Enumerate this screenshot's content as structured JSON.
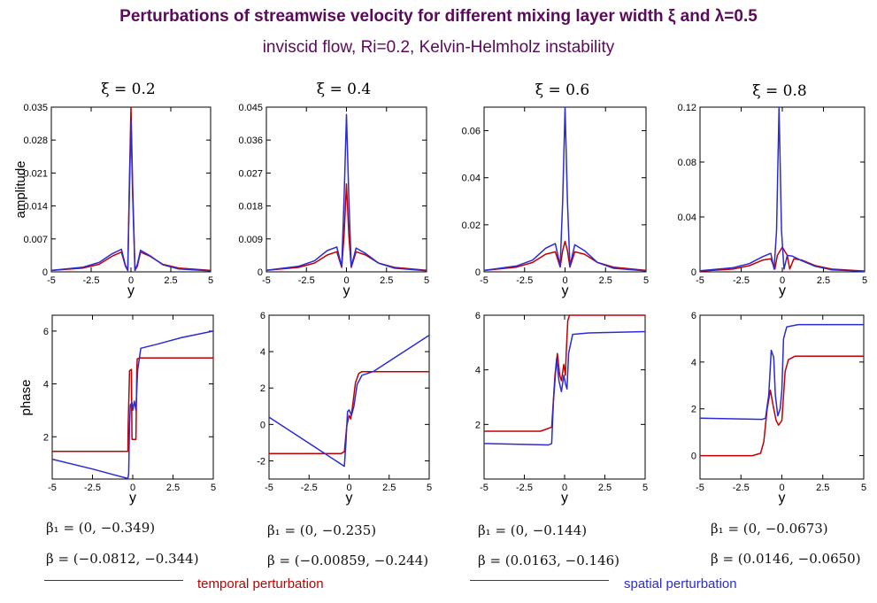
{
  "title": "Perturbations of streamwise velocity for different mixing layer width ξ and λ=0.5",
  "subtitle": "inviscid flow, Ri=0.2,   Kelvin-Helmholz instability",
  "colors": {
    "temporal": "#c00000",
    "spatial": "#2b2bd6",
    "title": "#5a0a5a"
  },
  "legend": {
    "temporal": "temporal perturbation",
    "spatial": "spatial perturbation"
  },
  "ylabel_amplitude": "amplitude",
  "ylabel_phase": "phase",
  "xlabel": "y",
  "annotations": [
    {
      "beta1": "β₁ = (0, −0.349)",
      "beta": "β = (−0.0812, −0.344)"
    },
    {
      "beta1": "β₁ = (0, −0.235)",
      "beta": "β = (−0.00859, −0.244)"
    },
    {
      "beta1": "β₁ = (0, −0.144)",
      "beta": "β = (0.0163, −0.146)"
    },
    {
      "beta1": "β₁ = (0, −0.0673)",
      "beta": "β = (0.0146, −0.0650)"
    }
  ],
  "chart_data": [
    {
      "type": "line",
      "panel_title": "ξ = 0.2",
      "ylim": [
        0,
        0.035
      ],
      "yticks": [
        0,
        0.007,
        0.014,
        0.021,
        0.028,
        0.035
      ],
      "ytick_labels": [
        "0",
        "0.007",
        "0.014",
        "0.021",
        "0.028",
        "0.035"
      ],
      "xlim": [
        -5,
        5
      ],
      "xticks": [
        -5,
        -2.5,
        0,
        2.5,
        5
      ],
      "xtick_labels": [
        "-5",
        "-2.5",
        "0",
        "2.5",
        "5"
      ],
      "series": [
        {
          "name": "temporal perturbation",
          "kind": "temporal",
          "x": [
            -5,
            -3,
            -2,
            -1.2,
            -0.6,
            -0.35,
            -0.2,
            -0.1,
            0,
            0.1,
            0.25,
            0.4,
            0.6,
            1.2,
            2,
            3,
            5
          ],
          "y": [
            0.0003,
            0.0008,
            0.0016,
            0.0033,
            0.0042,
            0.0012,
            0.0003,
            0.019,
            0.035,
            0.019,
            0.0003,
            0.0012,
            0.0042,
            0.0033,
            0.0016,
            0.0008,
            0.0003
          ]
        },
        {
          "name": "spatial perturbation",
          "kind": "spatial",
          "x": [
            -5,
            -3,
            -2,
            -1.2,
            -0.6,
            -0.35,
            -0.2,
            -0.1,
            0,
            0.1,
            0.25,
            0.4,
            0.6,
            1.2,
            2,
            3,
            5
          ],
          "y": [
            0.0003,
            0.001,
            0.002,
            0.0038,
            0.0048,
            0.0014,
            0.0003,
            0.017,
            0.032,
            0.017,
            0.0003,
            0.0016,
            0.0046,
            0.0034,
            0.0015,
            0.0006,
            0.0002
          ]
        }
      ]
    },
    {
      "type": "line",
      "panel_title": "ξ = 0.4",
      "ylim": [
        0,
        0.045
      ],
      "yticks": [
        0,
        0.009,
        0.018,
        0.027,
        0.036,
        0.045
      ],
      "ytick_labels": [
        "0",
        "0.009",
        "0.018",
        "0.027",
        "0.036",
        "0.045"
      ],
      "xlim": [
        -5,
        5
      ],
      "xticks": [
        -5,
        -2.5,
        0,
        2.5,
        5
      ],
      "xtick_labels": [
        "-5",
        "-2.5",
        "0",
        "2.5",
        "5"
      ],
      "series": [
        {
          "name": "temporal perturbation",
          "kind": "temporal",
          "x": [
            -5,
            -3,
            -2,
            -1.2,
            -0.6,
            -0.3,
            -0.15,
            0,
            0.15,
            0.3,
            0.6,
            1.2,
            2,
            3,
            5
          ],
          "y": [
            0.0004,
            0.0012,
            0.0024,
            0.0046,
            0.0055,
            0.0012,
            0.01,
            0.024,
            0.01,
            0.0012,
            0.0055,
            0.0046,
            0.0024,
            0.0012,
            0.0004
          ]
        },
        {
          "name": "spatial perturbation",
          "kind": "spatial",
          "x": [
            -5,
            -3,
            -2,
            -1.2,
            -0.6,
            -0.3,
            -0.15,
            0,
            0.15,
            0.3,
            0.6,
            1.2,
            2,
            3,
            5
          ],
          "y": [
            0.0004,
            0.0015,
            0.003,
            0.0058,
            0.0068,
            0.0014,
            0.02,
            0.043,
            0.02,
            0.0014,
            0.0065,
            0.005,
            0.0024,
            0.001,
            0.0003
          ]
        }
      ]
    },
    {
      "type": "line",
      "panel_title": "ξ = 0.6",
      "ylim": [
        0,
        0.07
      ],
      "yticks": [
        0,
        0.02,
        0.04,
        0.06
      ],
      "ytick_labels": [
        "0",
        "0.02",
        "0.04",
        "0.06"
      ],
      "xlim": [
        -5,
        5
      ],
      "xticks": [
        -5,
        -2.5,
        0,
        2.5,
        5
      ],
      "xtick_labels": [
        "-5",
        "-2.5",
        "0",
        "2.5",
        "5"
      ],
      "series": [
        {
          "name": "temporal perturbation",
          "kind": "temporal",
          "x": [
            -5,
            -3,
            -2,
            -1.2,
            -0.6,
            -0.3,
            -0.15,
            0,
            0.15,
            0.3,
            0.6,
            1.2,
            2,
            3,
            5
          ],
          "y": [
            0.0006,
            0.002,
            0.004,
            0.0075,
            0.0085,
            0.002,
            0.009,
            0.013,
            0.009,
            0.002,
            0.0085,
            0.0075,
            0.004,
            0.002,
            0.0006
          ]
        },
        {
          "name": "spatial perturbation",
          "kind": "spatial",
          "x": [
            -5,
            -3,
            -2,
            -1.2,
            -0.6,
            -0.3,
            -0.15,
            0,
            0.15,
            0.3,
            0.6,
            1.2,
            2,
            3,
            5
          ],
          "y": [
            0.0006,
            0.0025,
            0.005,
            0.01,
            0.012,
            0.0025,
            0.03,
            0.071,
            0.03,
            0.0025,
            0.0115,
            0.009,
            0.004,
            0.0015,
            0.0004
          ]
        }
      ]
    },
    {
      "type": "line",
      "panel_title": "ξ = 0.8",
      "ylim": [
        0,
        0.12
      ],
      "yticks": [
        0,
        0.04,
        0.08,
        0.12
      ],
      "ytick_labels": [
        "0",
        "0.04",
        "0.08",
        "0.12"
      ],
      "xlim": [
        -5,
        5
      ],
      "xticks": [
        -5,
        -2.5,
        0,
        2.5,
        5
      ],
      "xtick_labels": [
        "-5",
        "-2.5",
        "0",
        "2.5",
        "5"
      ],
      "series": [
        {
          "name": "temporal perturbation",
          "kind": "temporal",
          "x": [
            -5,
            -3,
            -2,
            -1.2,
            -0.7,
            -0.45,
            -0.3,
            0,
            0.3,
            0.45,
            0.7,
            1.2,
            2,
            3,
            5
          ],
          "y": [
            0.0006,
            0.002,
            0.0045,
            0.0085,
            0.0095,
            0.002,
            0.012,
            0.018,
            0.012,
            0.002,
            0.0095,
            0.0085,
            0.0045,
            0.002,
            0.0006
          ]
        },
        {
          "name": "spatial perturbation",
          "kind": "spatial",
          "x": [
            -5,
            -3,
            -2,
            -1.2,
            -0.7,
            -0.5,
            -0.35,
            -0.2,
            -0.05,
            0.1,
            0.3,
            0.6,
            1.2,
            2,
            3,
            5
          ],
          "y": [
            0.0008,
            0.003,
            0.006,
            0.011,
            0.0135,
            0.002,
            0.03,
            0.12,
            0.03,
            0.002,
            0.012,
            0.0115,
            0.008,
            0.004,
            0.0015,
            0.0005
          ]
        }
      ]
    },
    {
      "type": "line",
      "ylim": [
        0.4,
        6.6
      ],
      "yticks": [
        2,
        4,
        6
      ],
      "ytick_labels": [
        "2",
        "4",
        "6"
      ],
      "xlim": [
        -5,
        5
      ],
      "xticks": [
        -5,
        -2.5,
        0,
        2.5,
        5
      ],
      "xtick_labels": [
        "-5",
        "-2.5",
        "0",
        "2.5",
        "5"
      ],
      "series": [
        {
          "name": "temporal perturbation",
          "kind": "temporal",
          "x": [
            -5,
            -0.3,
            -0.28,
            -0.2,
            -0.08,
            -0.05,
            -0.04,
            0.05,
            0.06,
            0.2,
            0.25,
            0.28,
            0.45,
            5
          ],
          "y": [
            1.45,
            1.45,
            2.5,
            4.5,
            4.55,
            2.0,
            1.9,
            1.9,
            1.9,
            1.9,
            4.6,
            4.95,
            4.98,
            4.98
          ]
        },
        {
          "name": "spatial perturbation",
          "kind": "spatial",
          "x": [
            -5,
            -2.5,
            -0.3,
            -0.25,
            -0.2,
            -0.15,
            -0.05,
            0,
            0.1,
            0.2,
            0.3,
            0.5,
            1.5,
            3,
            5
          ],
          "y": [
            1.15,
            0.78,
            0.42,
            0.6,
            2.5,
            3.2,
            3.3,
            3.0,
            3.35,
            3.0,
            4.5,
            5.35,
            5.5,
            5.75,
            6.0
          ]
        }
      ]
    },
    {
      "type": "line",
      "ylim": [
        -3,
        6
      ],
      "yticks": [
        -2,
        0,
        2,
        4,
        6
      ],
      "ytick_labels": [
        "-2",
        "0",
        "2",
        "4",
        "6"
      ],
      "xlim": [
        -5,
        5
      ],
      "xticks": [
        -5,
        -2.5,
        0,
        2.5,
        5
      ],
      "xtick_labels": [
        "-5",
        "-2.5",
        "0",
        "2.5",
        "5"
      ],
      "series": [
        {
          "name": "temporal perturbation",
          "kind": "temporal",
          "x": [
            -5,
            -0.5,
            -0.3,
            -0.15,
            0,
            0.1,
            0.2,
            0.4,
            0.6,
            0.8,
            5
          ],
          "y": [
            -1.6,
            -1.6,
            -1.5,
            -0.1,
            0.5,
            0.3,
            0.9,
            2.3,
            2.8,
            2.9,
            2.9
          ]
        },
        {
          "name": "spatial perturbation",
          "kind": "spatial",
          "x": [
            -5,
            -0.3,
            -0.2,
            -0.1,
            0,
            0.15,
            0.3,
            0.5,
            0.8,
            1.5,
            5
          ],
          "y": [
            0.4,
            -2.3,
            -1.0,
            0.7,
            0.8,
            0.5,
            1.0,
            2.2,
            2.7,
            2.9,
            4.9
          ]
        }
      ]
    },
    {
      "type": "line",
      "ylim": [
        0,
        6
      ],
      "yticks": [
        2,
        4,
        6
      ],
      "ytick_labels": [
        "2",
        "4",
        "6"
      ],
      "xlim": [
        -5,
        5
      ],
      "xticks": [
        -5,
        -2.5,
        0,
        2.5,
        5
      ],
      "xtick_labels": [
        "-5",
        "-2.5",
        "0",
        "2.5",
        "5"
      ],
      "series": [
        {
          "name": "temporal perturbation",
          "kind": "temporal",
          "x": [
            -5,
            -1.5,
            -0.8,
            -0.6,
            -0.45,
            -0.3,
            -0.2,
            -0.05,
            0.05,
            0.1,
            0.2,
            0.3,
            5
          ],
          "y": [
            1.75,
            1.75,
            1.9,
            3.8,
            4.6,
            3.8,
            3.6,
            4.2,
            3.8,
            4.6,
            5.8,
            6.0,
            6.0
          ]
        },
        {
          "name": "spatial perturbation",
          "kind": "spatial",
          "x": [
            -5,
            -1,
            -0.8,
            -0.7,
            -0.5,
            -0.35,
            -0.2,
            -0.05,
            0.05,
            0.15,
            0.25,
            0.5,
            1.5,
            5
          ],
          "y": [
            1.3,
            1.25,
            1.3,
            2.8,
            4.4,
            3.6,
            3.2,
            3.8,
            3.5,
            3.3,
            4.6,
            5.3,
            5.35,
            5.4
          ]
        }
      ]
    },
    {
      "type": "line",
      "ylim": [
        -1,
        6
      ],
      "yticks": [
        0,
        2,
        4,
        6
      ],
      "ytick_labels": [
        "0",
        "2",
        "4",
        "6"
      ],
      "xlim": [
        -5,
        5
      ],
      "xticks": [
        -5,
        -2.5,
        0,
        2.5,
        5
      ],
      "xtick_labels": [
        "-5",
        "-2.5",
        "0",
        "2.5",
        "5"
      ],
      "series": [
        {
          "name": "temporal perturbation",
          "kind": "temporal",
          "x": [
            -5,
            -1.8,
            -1.3,
            -1.1,
            -0.9,
            -0.7,
            -0.5,
            -0.35,
            -0.2,
            0,
            0.2,
            0.4,
            0.8,
            5
          ],
          "y": [
            0,
            0,
            0.1,
            0.6,
            2.0,
            2.8,
            2.0,
            1.5,
            1.3,
            1.5,
            3.6,
            4.1,
            4.25,
            4.25
          ]
        },
        {
          "name": "spatial perturbation",
          "kind": "spatial",
          "x": [
            -5,
            -1.2,
            -1.0,
            -0.8,
            -0.65,
            -0.5,
            -0.4,
            -0.25,
            -0.1,
            0,
            0.1,
            0.3,
            1,
            5
          ],
          "y": [
            1.6,
            1.55,
            1.6,
            2.6,
            4.5,
            4.2,
            2.6,
            1.7,
            2.0,
            2.8,
            5.0,
            5.5,
            5.6,
            5.6
          ]
        }
      ]
    }
  ]
}
